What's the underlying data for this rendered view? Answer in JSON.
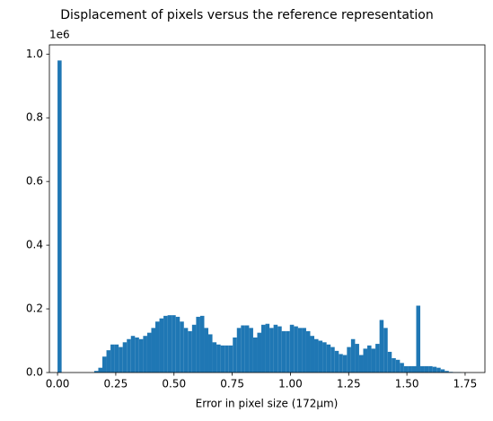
{
  "chart_data": {
    "type": "histogram",
    "title": "Displacement of pixels versus the reference representation",
    "x_label": "Error in pixel size (172µm)",
    "offset_text": "1e6",
    "color": "#1f77b4",
    "bins": [
      0,
      0.0175,
      0.035,
      0.0525,
      0.07,
      0.0875,
      0.105,
      0.1225,
      0.14,
      0.1575,
      0.175,
      0.1925,
      0.21,
      0.2275,
      0.245,
      0.2625,
      0.28,
      0.2975,
      0.315,
      0.3325,
      0.35,
      0.3675,
      0.385,
      0.4025,
      0.42,
      0.4375,
      0.455,
      0.4725,
      0.49,
      0.5075,
      0.525,
      0.5425,
      0.56,
      0.5775,
      0.595,
      0.6125,
      0.63,
      0.6475,
      0.665,
      0.6825,
      0.7,
      0.7175,
      0.735,
      0.7525,
      0.77,
      0.7875,
      0.805,
      0.8225,
      0.84,
      0.8575,
      0.875,
      0.8925,
      0.91,
      0.9275,
      0.945,
      0.9625,
      0.98,
      0.9975,
      1.015,
      1.0325,
      1.05,
      1.0675,
      1.085,
      1.1025,
      1.12,
      1.1375,
      1.155,
      1.1725,
      1.19,
      1.2075,
      1.225,
      1.2425,
      1.26,
      1.2775,
      1.295,
      1.3125,
      1.33,
      1.3475,
      1.365,
      1.3825,
      1.4,
      1.4175,
      1.435,
      1.4525,
      1.47,
      1.4875,
      1.505,
      1.5225,
      1.54,
      1.5575,
      1.575,
      1.5925,
      1.61,
      1.6275,
      1.645,
      1.6625,
      1.68,
      1.6975,
      1.715,
      1.7325,
      1.75
    ],
    "counts": [
      0.98,
      0,
      0,
      0,
      0,
      0,
      0,
      0,
      0,
      0.005,
      0.015,
      0.05,
      0.07,
      0.088,
      0.088,
      0.08,
      0.095,
      0.105,
      0.115,
      0.11,
      0.105,
      0.115,
      0.125,
      0.14,
      0.16,
      0.17,
      0.178,
      0.18,
      0.18,
      0.175,
      0.16,
      0.14,
      0.13,
      0.15,
      0.175,
      0.178,
      0.14,
      0.12,
      0.095,
      0.088,
      0.085,
      0.085,
      0.085,
      0.11,
      0.14,
      0.148,
      0.148,
      0.14,
      0.11,
      0.125,
      0.15,
      0.153,
      0.14,
      0.15,
      0.145,
      0.13,
      0.13,
      0.15,
      0.145,
      0.14,
      0.14,
      0.13,
      0.115,
      0.105,
      0.1,
      0.095,
      0.088,
      0.08,
      0.068,
      0.058,
      0.055,
      0.08,
      0.105,
      0.09,
      0.055,
      0.075,
      0.085,
      0.075,
      0.09,
      0.165,
      0.14,
      0.065,
      0.045,
      0.04,
      0.03,
      0.02,
      0.02,
      0.02,
      0.21,
      0.02,
      0.02,
      0.02,
      0.018,
      0.015,
      0.01,
      0.005,
      0.002,
      0.001,
      0.001,
      0
    ],
    "xlim": [
      -0.035,
      1.835
    ],
    "ylim": [
      0,
      1.029
    ],
    "xticks": [
      {
        "value": 0,
        "label": "0.00"
      },
      {
        "value": 0.25,
        "label": "0.25"
      },
      {
        "value": 0.5,
        "label": "0.50"
      },
      {
        "value": 0.75,
        "label": "0.75"
      },
      {
        "value": 1,
        "label": "1.00"
      },
      {
        "value": 1.25,
        "label": "1.25"
      },
      {
        "value": 1.5,
        "label": "1.50"
      },
      {
        "value": 1.75,
        "label": "1.75"
      }
    ],
    "yticks": [
      {
        "value": 0,
        "label": "0.0"
      },
      0.2,
      0.4,
      0.6,
      0.8,
      {
        "value": 1,
        "label": "1.0"
      }
    ]
  }
}
